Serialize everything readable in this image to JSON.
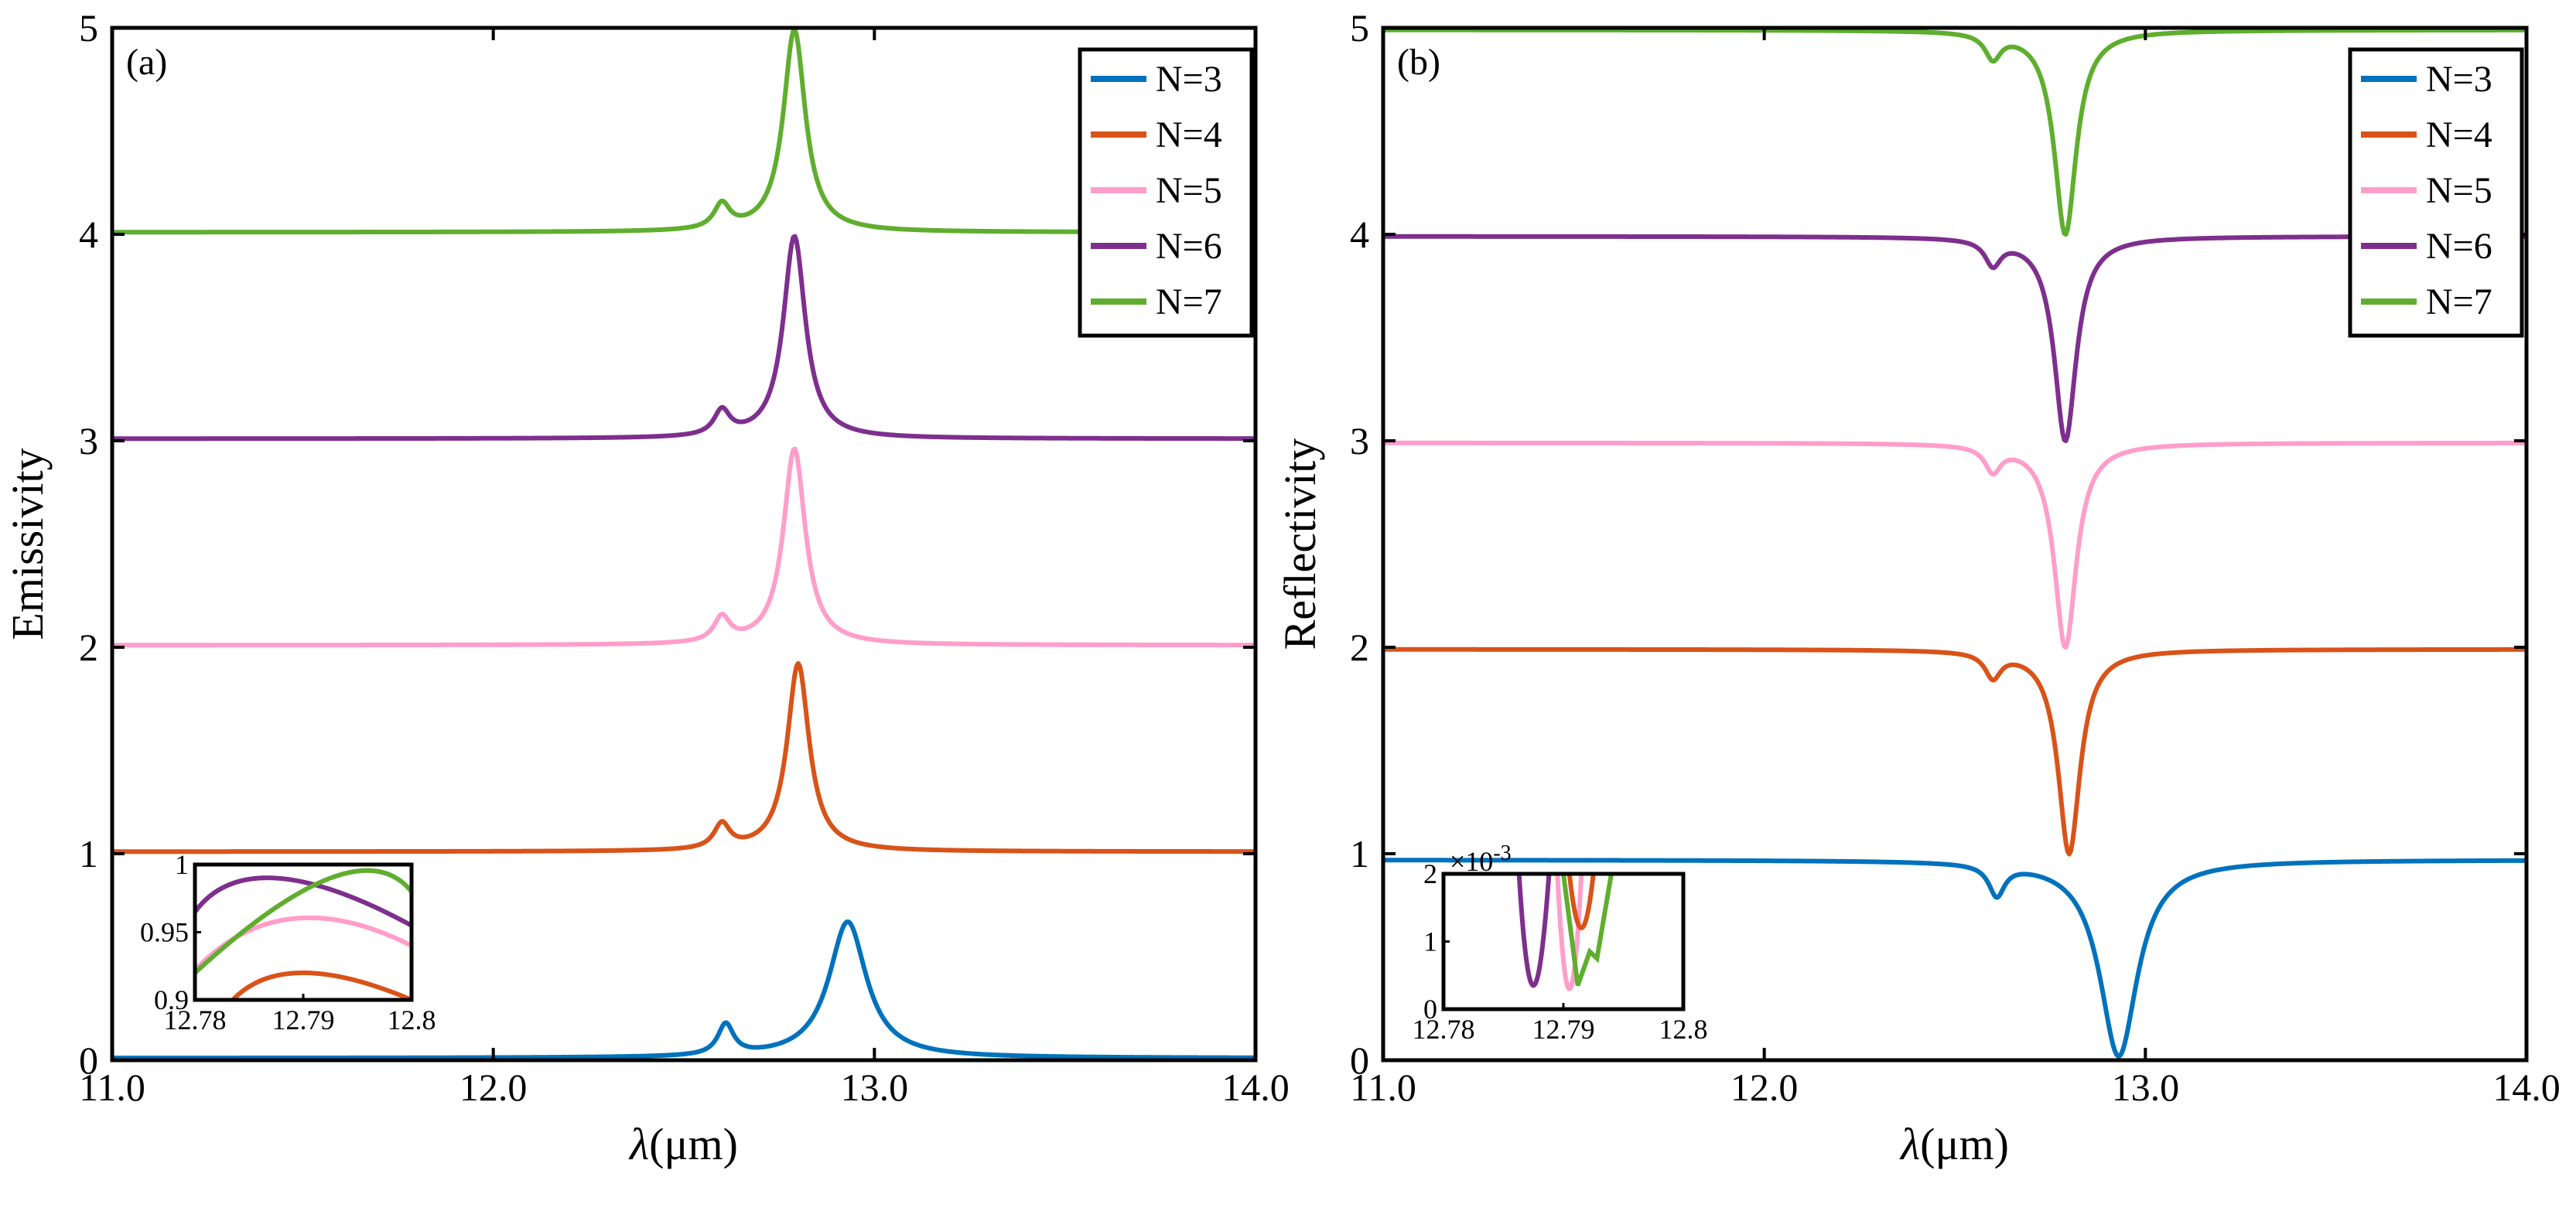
{
  "colors": {
    "N3": "#0072BD",
    "N4": "#D95319",
    "N5": "#FF9ECB",
    "N6": "#7E2F8E",
    "N7": "#5FAE2E"
  },
  "chart_data": [
    {
      "type": "line",
      "panel": "(a)",
      "xlabel_symbol": "λ",
      "xlabel_unit": "(μm)",
      "ylabel": "Emissivity",
      "xlim": [
        11.0,
        14.0
      ],
      "ylim": [
        0,
        5
      ],
      "xtick_labels": [
        "11.0",
        "12.0",
        "13.0",
        "14.0"
      ],
      "ytick_labels": [
        "0",
        "1",
        "2",
        "3",
        "4",
        "5"
      ],
      "legend": [
        "N=3",
        "N=4",
        "N=5",
        "N=6",
        "N=7"
      ],
      "series": [
        {
          "name": "N=3",
          "color_key": "N3",
          "offset": 0,
          "peak_x": 12.93,
          "peak_height": 0.67,
          "peak_width": 0.06,
          "shoulder_x": 12.61,
          "shoulder_height": 0.15,
          "baseline": 0.01
        },
        {
          "name": "N=4",
          "color_key": "N4",
          "offset": 1,
          "peak_x": 12.8,
          "peak_height": 0.92,
          "peak_width": 0.035,
          "shoulder_x": 12.6,
          "shoulder_height": 0.12,
          "baseline": 0.01
        },
        {
          "name": "N=5",
          "color_key": "N5",
          "offset": 2,
          "peak_x": 12.79,
          "peak_height": 0.96,
          "peak_width": 0.035,
          "shoulder_x": 12.6,
          "shoulder_height": 0.12,
          "baseline": 0.01
        },
        {
          "name": "N=6",
          "color_key": "N6",
          "offset": 3,
          "peak_x": 12.79,
          "peak_height": 0.99,
          "peak_width": 0.035,
          "shoulder_x": 12.6,
          "shoulder_height": 0.12,
          "baseline": 0.01
        },
        {
          "name": "N=7",
          "color_key": "N7",
          "offset": 4,
          "peak_x": 12.79,
          "peak_height": 0.99,
          "peak_width": 0.035,
          "shoulder_x": 12.6,
          "shoulder_height": 0.12,
          "baseline": 0.01
        }
      ],
      "inset": {
        "xlim": [
          12.78,
          12.8
        ],
        "ylim": [
          0.9,
          1.0
        ],
        "xtick_labels": [
          "12.78",
          "12.79",
          "12.8"
        ],
        "ytick_labels": [
          "0.9",
          "0.95",
          "1"
        ],
        "series": [
          {
            "name": "N=4",
            "color_key": "N4",
            "x": [
              12.7835,
              12.79,
              12.8
            ],
            "y": [
              0.9,
              0.92,
              0.9
            ]
          },
          {
            "name": "N=5",
            "color_key": "N5",
            "x": [
              12.78,
              12.789,
              12.8
            ],
            "y": [
              0.922,
              0.96,
              0.94
            ]
          },
          {
            "name": "N=6",
            "color_key": "N6",
            "x": [
              12.78,
              12.7875,
              12.8
            ],
            "y": [
              0.965,
              0.99,
              0.955
            ]
          },
          {
            "name": "N=7",
            "color_key": "N7",
            "x": [
              12.78,
              12.7925,
              12.8
            ],
            "y": [
              0.92,
              0.99,
              0.98
            ]
          }
        ]
      }
    },
    {
      "type": "line",
      "panel": "(b)",
      "xlabel_symbol": "λ",
      "xlabel_unit": "(μm)",
      "ylabel": "Reflectivity",
      "xlim": [
        11.0,
        14.0
      ],
      "ylim": [
        0,
        5
      ],
      "xtick_labels": [
        "11.0",
        "12.0",
        "13.0",
        "14.0"
      ],
      "ytick_labels": [
        "0",
        "1",
        "2",
        "3",
        "4",
        "5"
      ],
      "legend": [
        "N=3",
        "N=4",
        "N=5",
        "N=6",
        "N=7"
      ],
      "series": [
        {
          "name": "N=3",
          "color_key": "N3",
          "offset": 0,
          "dip_x": 12.93,
          "dip_depth": 0.95,
          "dip_width": 0.06,
          "shoulder_x": 12.61,
          "shoulder_depth": 0.15,
          "baseline": 0.97
        },
        {
          "name": "N=4",
          "color_key": "N4",
          "offset": 1,
          "dip_x": 12.8,
          "dip_depth": 0.99,
          "dip_width": 0.035,
          "shoulder_x": 12.6,
          "shoulder_depth": 0.12,
          "baseline": 0.99
        },
        {
          "name": "N=5",
          "color_key": "N5",
          "offset": 2,
          "dip_x": 12.79,
          "dip_depth": 0.99,
          "dip_width": 0.035,
          "shoulder_x": 12.6,
          "shoulder_depth": 0.12,
          "baseline": 0.99
        },
        {
          "name": "N=6",
          "color_key": "N6",
          "offset": 3,
          "dip_x": 12.79,
          "dip_depth": 0.99,
          "dip_width": 0.035,
          "shoulder_x": 12.6,
          "shoulder_depth": 0.12,
          "baseline": 0.99
        },
        {
          "name": "N=7",
          "color_key": "N7",
          "offset": 4,
          "dip_x": 12.79,
          "dip_depth": 0.99,
          "dip_width": 0.035,
          "shoulder_x": 12.6,
          "shoulder_depth": 0.12,
          "baseline": 0.99
        }
      ],
      "inset": {
        "xlim": [
          12.78,
          12.8
        ],
        "ylim": [
          0,
          2
        ],
        "scale_label": "×10",
        "scale_exponent": "-3",
        "xtick_labels": [
          "12.78",
          "12.79",
          "12.8"
        ],
        "ytick_labels": [
          "0",
          "1",
          "2"
        ],
        "series": [
          {
            "name": "N=6",
            "color_key": "N6",
            "x": [
              12.7863,
              12.7875,
              12.7888
            ],
            "y": [
              2.0,
              0.35,
              2.0
            ]
          },
          {
            "name": "N=5",
            "color_key": "N5",
            "x": [
              12.7895,
              12.7905,
              12.7915
            ],
            "y": [
              2.0,
              0.3,
              2.0
            ]
          },
          {
            "name": "N=4",
            "color_key": "N4",
            "x": [
              12.7905,
              12.7915,
              12.7925
            ],
            "y": [
              2.0,
              1.2,
              2.0
            ]
          },
          {
            "name": "N=7",
            "color_key": "N7",
            "x": [
              12.79,
              12.7912,
              12.7922,
              12.7928,
              12.794
            ],
            "y": [
              2.0,
              0.35,
              0.85,
              0.75,
              2.0
            ]
          }
        ]
      }
    }
  ]
}
